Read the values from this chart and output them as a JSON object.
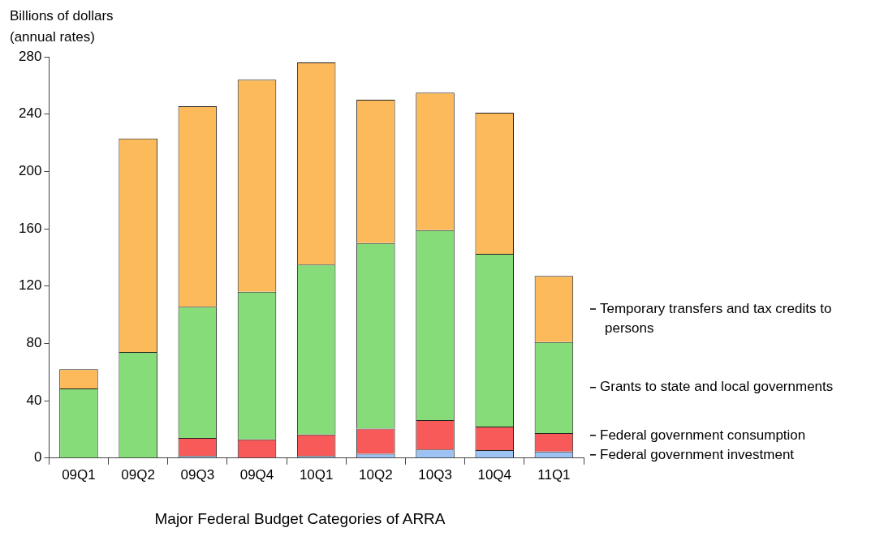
{
  "chart_data": {
    "type": "bar",
    "stacked": true,
    "title": "Major Federal Budget Categories of ARRA",
    "ylabel": "Billions of dollars (annual rates)",
    "categories": [
      "09Q1",
      "09Q2",
      "09Q3",
      "09Q4",
      "10Q1",
      "10Q2",
      "10Q3",
      "10Q4",
      "11Q1"
    ],
    "ylim": [
      0,
      280
    ],
    "yticks": [
      0,
      40,
      80,
      120,
      160,
      200,
      240,
      280
    ],
    "grid": false,
    "series": [
      {
        "name": "Federal government investment",
        "color": "#9dc3f5",
        "values": [
          0,
          0,
          1.5,
          0,
          1.5,
          3,
          6,
          5.5,
          4.5
        ]
      },
      {
        "name": "Federal government consumption",
        "color": "#f85a5a",
        "values": [
          0,
          0,
          12.5,
          13,
          15,
          17.5,
          20.5,
          16.5,
          13
        ]
      },
      {
        "name": "Grants to state and local governments",
        "color": "#85dc78",
        "values": [
          48.5,
          74,
          91.5,
          103,
          118.5,
          129.5,
          132.5,
          120.5,
          63.5
        ]
      },
      {
        "name": "Temporary transfers and tax credits to persons",
        "color": "#fdba5a",
        "values": [
          13.5,
          149,
          140,
          148,
          141,
          100,
          96,
          98.5,
          46
        ]
      }
    ]
  }
}
